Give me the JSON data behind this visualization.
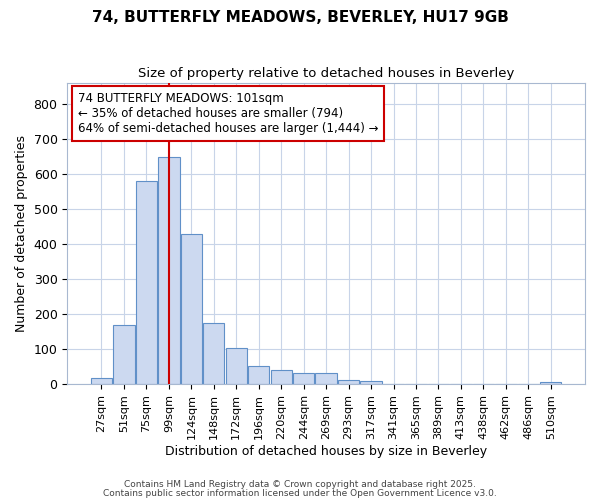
{
  "title_line1": "74, BUTTERFLY MEADOWS, BEVERLEY, HU17 9GB",
  "title_line2": "Size of property relative to detached houses in Beverley",
  "xlabel": "Distribution of detached houses by size in Beverley",
  "ylabel": "Number of detached properties",
  "bar_labels": [
    "27sqm",
    "51sqm",
    "75sqm",
    "99sqm",
    "124sqm",
    "148sqm",
    "172sqm",
    "196sqm",
    "220sqm",
    "244sqm",
    "269sqm",
    "293sqm",
    "317sqm",
    "341sqm",
    "365sqm",
    "389sqm",
    "413sqm",
    "438sqm",
    "462sqm",
    "486sqm",
    "510sqm"
  ],
  "bar_values": [
    18,
    168,
    580,
    650,
    430,
    175,
    103,
    52,
    40,
    33,
    33,
    12,
    10,
    0,
    0,
    0,
    0,
    0,
    0,
    0,
    5
  ],
  "bar_color": "#ccd9f0",
  "bar_edge_color": "#6090c8",
  "red_line_x": 3.0,
  "annotation_text": "74 BUTTERFLY MEADOWS: 101sqm\n← 35% of detached houses are smaller (794)\n64% of semi-detached houses are larger (1,444) →",
  "annotation_box_color": "#ffffff",
  "annotation_box_edge": "#cc0000",
  "red_line_color": "#cc0000",
  "ylim": [
    0,
    860
  ],
  "yticks": [
    0,
    100,
    200,
    300,
    400,
    500,
    600,
    700,
    800
  ],
  "grid_color": "#c8d4e8",
  "background_color": "#ffffff",
  "fig_background_color": "#ffffff",
  "footer_line1": "Contains HM Land Registry data © Crown copyright and database right 2025.",
  "footer_line2": "Contains public sector information licensed under the Open Government Licence v3.0."
}
